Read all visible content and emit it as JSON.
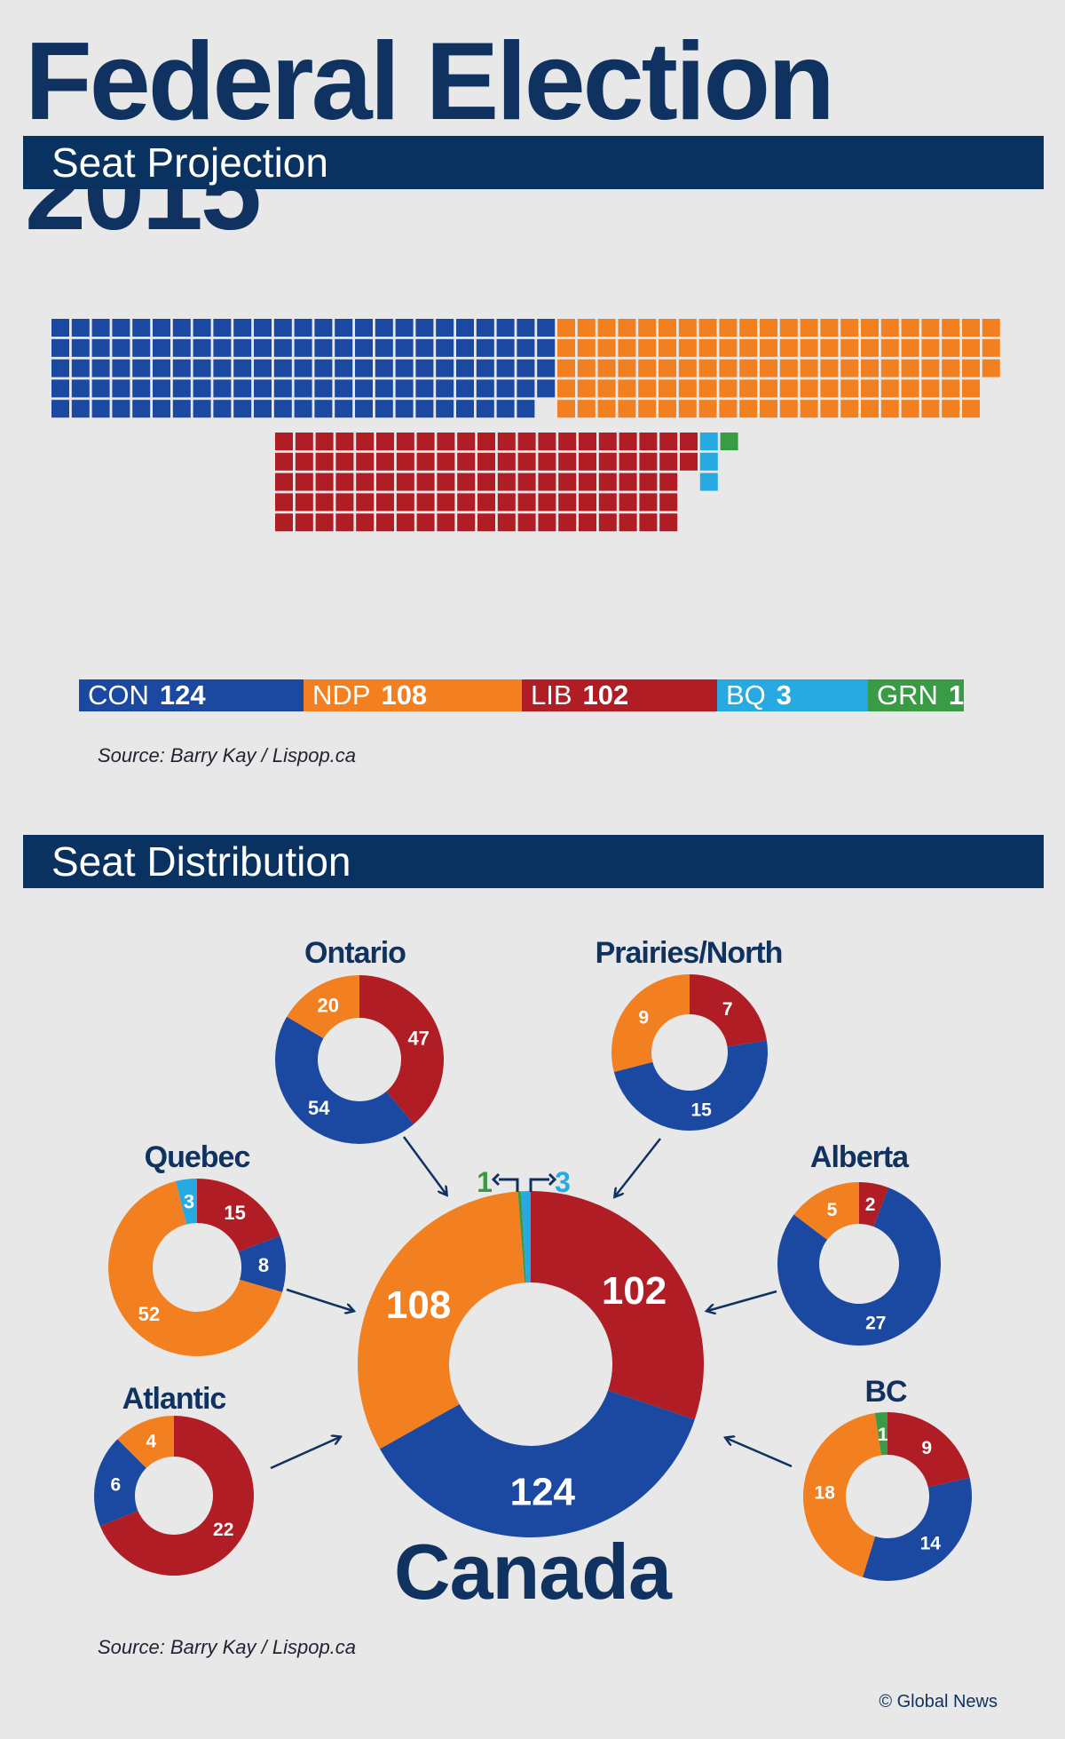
{
  "header": {
    "title": "Federal Election 2015",
    "section1": "Seat Projection",
    "section2": "Seat Distribution"
  },
  "colors": {
    "CON": "#1b48a0",
    "NDP": "#f28020",
    "LIB": "#b01d24",
    "BQ": "#27a9e1",
    "GRN": "#3a9b45"
  },
  "legend": [
    {
      "party": "CON",
      "seats": "124",
      "color": "#1b48a0"
    },
    {
      "party": "NDP",
      "seats": "108",
      "color": "#f28020"
    },
    {
      "party": "LIB",
      "seats": "102",
      "color": "#b01d24"
    },
    {
      "party": "BQ",
      "seats": "3",
      "color": "#27a9e1"
    },
    {
      "party": "GRN",
      "seats": "1",
      "color": "#3a9b45"
    }
  ],
  "source": "Source: Barry Kay / Lispop.ca",
  "credit": "© Global News",
  "chart_data": [
    {
      "type": "waffle",
      "title": "Seat Projection",
      "categories": [
        "CON",
        "NDP",
        "LIB",
        "BQ",
        "GRN"
      ],
      "values": [
        124,
        108,
        102,
        3,
        1
      ]
    },
    {
      "type": "pie",
      "title": "Canada",
      "slices": [
        {
          "party": "LIB",
          "value": 102,
          "label": "102"
        },
        {
          "party": "CON",
          "value": 124,
          "label": "124"
        },
        {
          "party": "NDP",
          "value": 108,
          "label": "108"
        },
        {
          "party": "GRN",
          "value": 1,
          "label": "1"
        },
        {
          "party": "BQ",
          "value": 3,
          "label": "3"
        }
      ]
    },
    {
      "type": "pie",
      "title": "Ontario",
      "slices": [
        {
          "party": "LIB",
          "value": 47,
          "label": "47"
        },
        {
          "party": "CON",
          "value": 54,
          "label": "54"
        },
        {
          "party": "NDP",
          "value": 20,
          "label": "20"
        }
      ]
    },
    {
      "type": "pie",
      "title": "Prairies/North",
      "slices": [
        {
          "party": "LIB",
          "value": 7,
          "label": "7"
        },
        {
          "party": "CON",
          "value": 15,
          "label": "15"
        },
        {
          "party": "NDP",
          "value": 9,
          "label": "9"
        }
      ]
    },
    {
      "type": "pie",
      "title": "Quebec",
      "slices": [
        {
          "party": "LIB",
          "value": 15,
          "label": "15"
        },
        {
          "party": "CON",
          "value": 8,
          "label": "8"
        },
        {
          "party": "NDP",
          "value": 52,
          "label": "52"
        },
        {
          "party": "BQ",
          "value": 3,
          "label": "3"
        }
      ]
    },
    {
      "type": "pie",
      "title": "Alberta",
      "slices": [
        {
          "party": "LIB",
          "value": 2,
          "label": "2"
        },
        {
          "party": "CON",
          "value": 27,
          "label": "27"
        },
        {
          "party": "NDP",
          "value": 5,
          "label": "5"
        }
      ]
    },
    {
      "type": "pie",
      "title": "Atlantic",
      "slices": [
        {
          "party": "LIB",
          "value": 22,
          "label": "22"
        },
        {
          "party": "CON",
          "value": 6,
          "label": "6"
        },
        {
          "party": "NDP",
          "value": 4,
          "label": "4"
        }
      ]
    },
    {
      "type": "pie",
      "title": "BC",
      "slices": [
        {
          "party": "LIB",
          "value": 9,
          "label": "9"
        },
        {
          "party": "CON",
          "value": 14,
          "label": "14"
        },
        {
          "party": "NDP",
          "value": 18,
          "label": "18"
        },
        {
          "party": "GRN",
          "value": 1,
          "label": "1"
        }
      ]
    }
  ]
}
